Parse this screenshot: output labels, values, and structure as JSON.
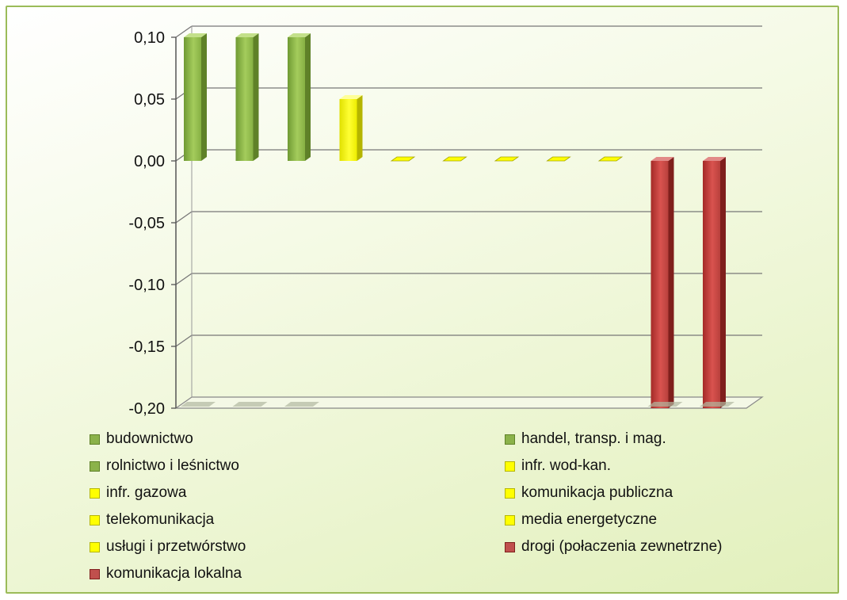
{
  "chart_data": {
    "type": "bar",
    "ylim": [
      -0.2,
      0.1
    ],
    "ytick_values": [
      0.1,
      0.05,
      0.0,
      -0.05,
      -0.1,
      -0.15,
      -0.2
    ],
    "ytick_labels": [
      "0,10",
      "0,05",
      "0,00",
      "-0,05",
      "-0,10",
      "-0,15",
      "-0,20"
    ],
    "grid": true,
    "legend_position": "bottom",
    "series": [
      {
        "name": "budownictwo",
        "value": 0.1,
        "color": "#9bbb59",
        "swatch": "green"
      },
      {
        "name": "handel, transp. i mag.",
        "value": 0.1,
        "color": "#9bbb59",
        "swatch": "green"
      },
      {
        "name": "rolnictwo i leśnictwo",
        "value": 0.1,
        "color": "#9bbb59",
        "swatch": "green"
      },
      {
        "name": "infr. wod-kan.",
        "value": 0.05,
        "color": "#ffff00",
        "swatch": "yellow"
      },
      {
        "name": "infr. gazowa",
        "value": 0.0,
        "color": "#ffff00",
        "swatch": "yellow"
      },
      {
        "name": "komunikacja publiczna",
        "value": 0.0,
        "color": "#ffff00",
        "swatch": "yellow"
      },
      {
        "name": "telekomunikacja",
        "value": 0.0,
        "color": "#ffff00",
        "swatch": "yellow"
      },
      {
        "name": "media energetyczne",
        "value": 0.0,
        "color": "#ffff00",
        "swatch": "yellow"
      },
      {
        "name": "usługi i przetwórstwo",
        "value": 0.0,
        "color": "#ffff00",
        "swatch": "yellow"
      },
      {
        "name": "drogi (połaczenia zewnetrzne)",
        "value": -0.2,
        "color": "#c0504d",
        "swatch": "red"
      },
      {
        "name": "komunikacja lokalna",
        "value": -0.2,
        "color": "#c0504d",
        "swatch": "red"
      }
    ]
  }
}
